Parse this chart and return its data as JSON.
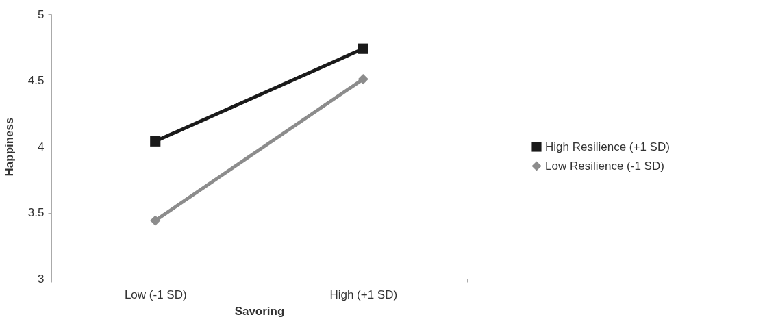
{
  "chart_data": {
    "type": "line",
    "xlabel": "Savoring",
    "ylabel": "Happiness",
    "categories": [
      "Low (-1 SD)",
      "High (+1 SD)"
    ],
    "series": [
      {
        "name": "High Resilience (+1 SD)",
        "color": "#1a1a1a",
        "marker": "square",
        "values": [
          4.04,
          4.74
        ]
      },
      {
        "name": "Low Resilience (-1 SD)",
        "color": "#8c8c8c",
        "marker": "diamond",
        "values": [
          3.44,
          4.51
        ]
      }
    ],
    "ylim": [
      3,
      5
    ],
    "yticks": [
      3,
      3.5,
      4,
      4.5,
      5
    ],
    "grid": false,
    "legend": "right",
    "line_style": "solid"
  }
}
